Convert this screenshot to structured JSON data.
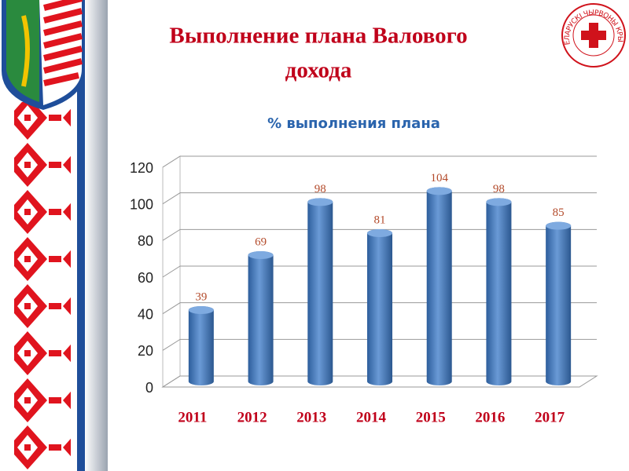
{
  "slide": {
    "title_lines": [
      "Выполнение плана Валового",
      "дохода"
    ],
    "logo_text": "БЕЛАРУСКІ ЧЫРВОНЫ КРЫЖ"
  },
  "chart_data": {
    "type": "bar",
    "title": "% выполнения плана",
    "categories": [
      "2011",
      "2012",
      "2013",
      "2014",
      "2015",
      "2016",
      "2017"
    ],
    "values": [
      39,
      69,
      98,
      81,
      104,
      98,
      85
    ],
    "color": "#4a7fc0",
    "label_color": "#b34a2a",
    "ylim": [
      0,
      120
    ],
    "yticks": [
      0,
      20,
      40,
      60,
      80,
      100,
      120
    ],
    "grid": true
  }
}
